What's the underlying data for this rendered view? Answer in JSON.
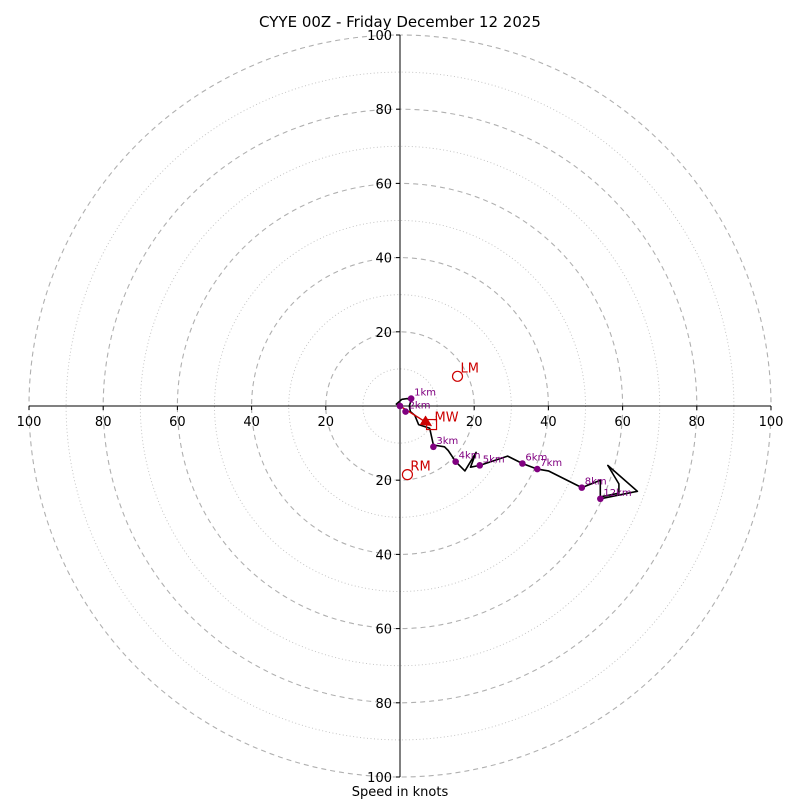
{
  "chart_data": {
    "type": "hodograph",
    "title": "CYYE 00Z - Friday December 12 2025",
    "xlabel": "Speed in knots",
    "axis_max": 100,
    "ring_step_major": 20,
    "ring_step_minor": 10,
    "x_tick_labels": [
      "100",
      "80",
      "60",
      "40",
      "20",
      "20",
      "40",
      "60",
      "80",
      "100"
    ],
    "x_tick_values": [
      -100,
      -80,
      -60,
      -40,
      -20,
      20,
      40,
      60,
      80,
      100
    ],
    "y_tick_labels": [
      "100",
      "80",
      "60",
      "40",
      "20",
      "20",
      "40",
      "60",
      "80",
      "100"
    ],
    "y_tick_values": [
      100,
      80,
      60,
      40,
      20,
      -20,
      -40,
      -60,
      -80,
      -100
    ],
    "trace": [
      {
        "u": 0,
        "v": 0
      },
      {
        "u": -1,
        "v": 0.5
      },
      {
        "u": 0.5,
        "v": 1.8
      },
      {
        "u": 2,
        "v": 2
      },
      {
        "u": 3,
        "v": 1.5
      },
      {
        "u": 2.5,
        "v": 0
      },
      {
        "u": 2.8,
        "v": -1.5
      },
      {
        "u": 4,
        "v": -2.5
      },
      {
        "u": 5,
        "v": -5
      },
      {
        "u": 8,
        "v": -6
      },
      {
        "u": 9,
        "v": -10.5
      },
      {
        "u": 12,
        "v": -11
      },
      {
        "u": 13,
        "v": -12
      },
      {
        "u": 15,
        "v": -15
      },
      {
        "u": 17.5,
        "v": -17.5
      },
      {
        "u": 20.5,
        "v": -12.5
      },
      {
        "u": 19,
        "v": -16.5
      },
      {
        "u": 21.5,
        "v": -16
      },
      {
        "u": 29,
        "v": -13.5
      },
      {
        "u": 33,
        "v": -15.5
      },
      {
        "u": 37,
        "v": -17
      },
      {
        "u": 40,
        "v": -17.5
      },
      {
        "u": 49,
        "v": -22
      },
      {
        "u": 54,
        "v": -20
      },
      {
        "u": 54,
        "v": -24.5
      },
      {
        "u": 59,
        "v": -23.5
      },
      {
        "u": 59,
        "v": -21
      },
      {
        "u": 56,
        "v": -16
      },
      {
        "u": 64,
        "v": -23
      },
      {
        "u": 54,
        "v": -25
      }
    ],
    "height_markers": [
      {
        "label": "",
        "u": 0,
        "v": 0
      },
      {
        "label": "1km",
        "u": 3,
        "v": 2
      },
      {
        "label": "2km",
        "u": 1.5,
        "v": -1.5
      },
      {
        "label": "3km",
        "u": 9,
        "v": -11
      },
      {
        "label": "4km",
        "u": 15,
        "v": -15
      },
      {
        "label": "5km",
        "u": 21.5,
        "v": -16
      },
      {
        "label": "6km",
        "u": 33,
        "v": -15.5
      },
      {
        "label": "7km",
        "u": 37,
        "v": -17
      },
      {
        "label": "8km",
        "u": 49,
        "v": -22
      },
      {
        "label": "12km",
        "u": 54,
        "v": -25
      }
    ],
    "storm_motion": {
      "LM": {
        "label": "LM",
        "u": 15.5,
        "v": 8
      },
      "RM": {
        "label": "RM",
        "u": 2,
        "v": -18.5
      },
      "MW": {
        "label": "MW",
        "u": 8.5,
        "v": -5
      },
      "arrow_from": {
        "u": 0,
        "v": 0
      },
      "arrow_to": {
        "u": 8,
        "v": -5
      }
    }
  },
  "colors": {
    "grid": "#b0b0b0",
    "trace": "#000000",
    "marker": "#800080",
    "storm": "#cc0000",
    "axis": "#000000"
  }
}
